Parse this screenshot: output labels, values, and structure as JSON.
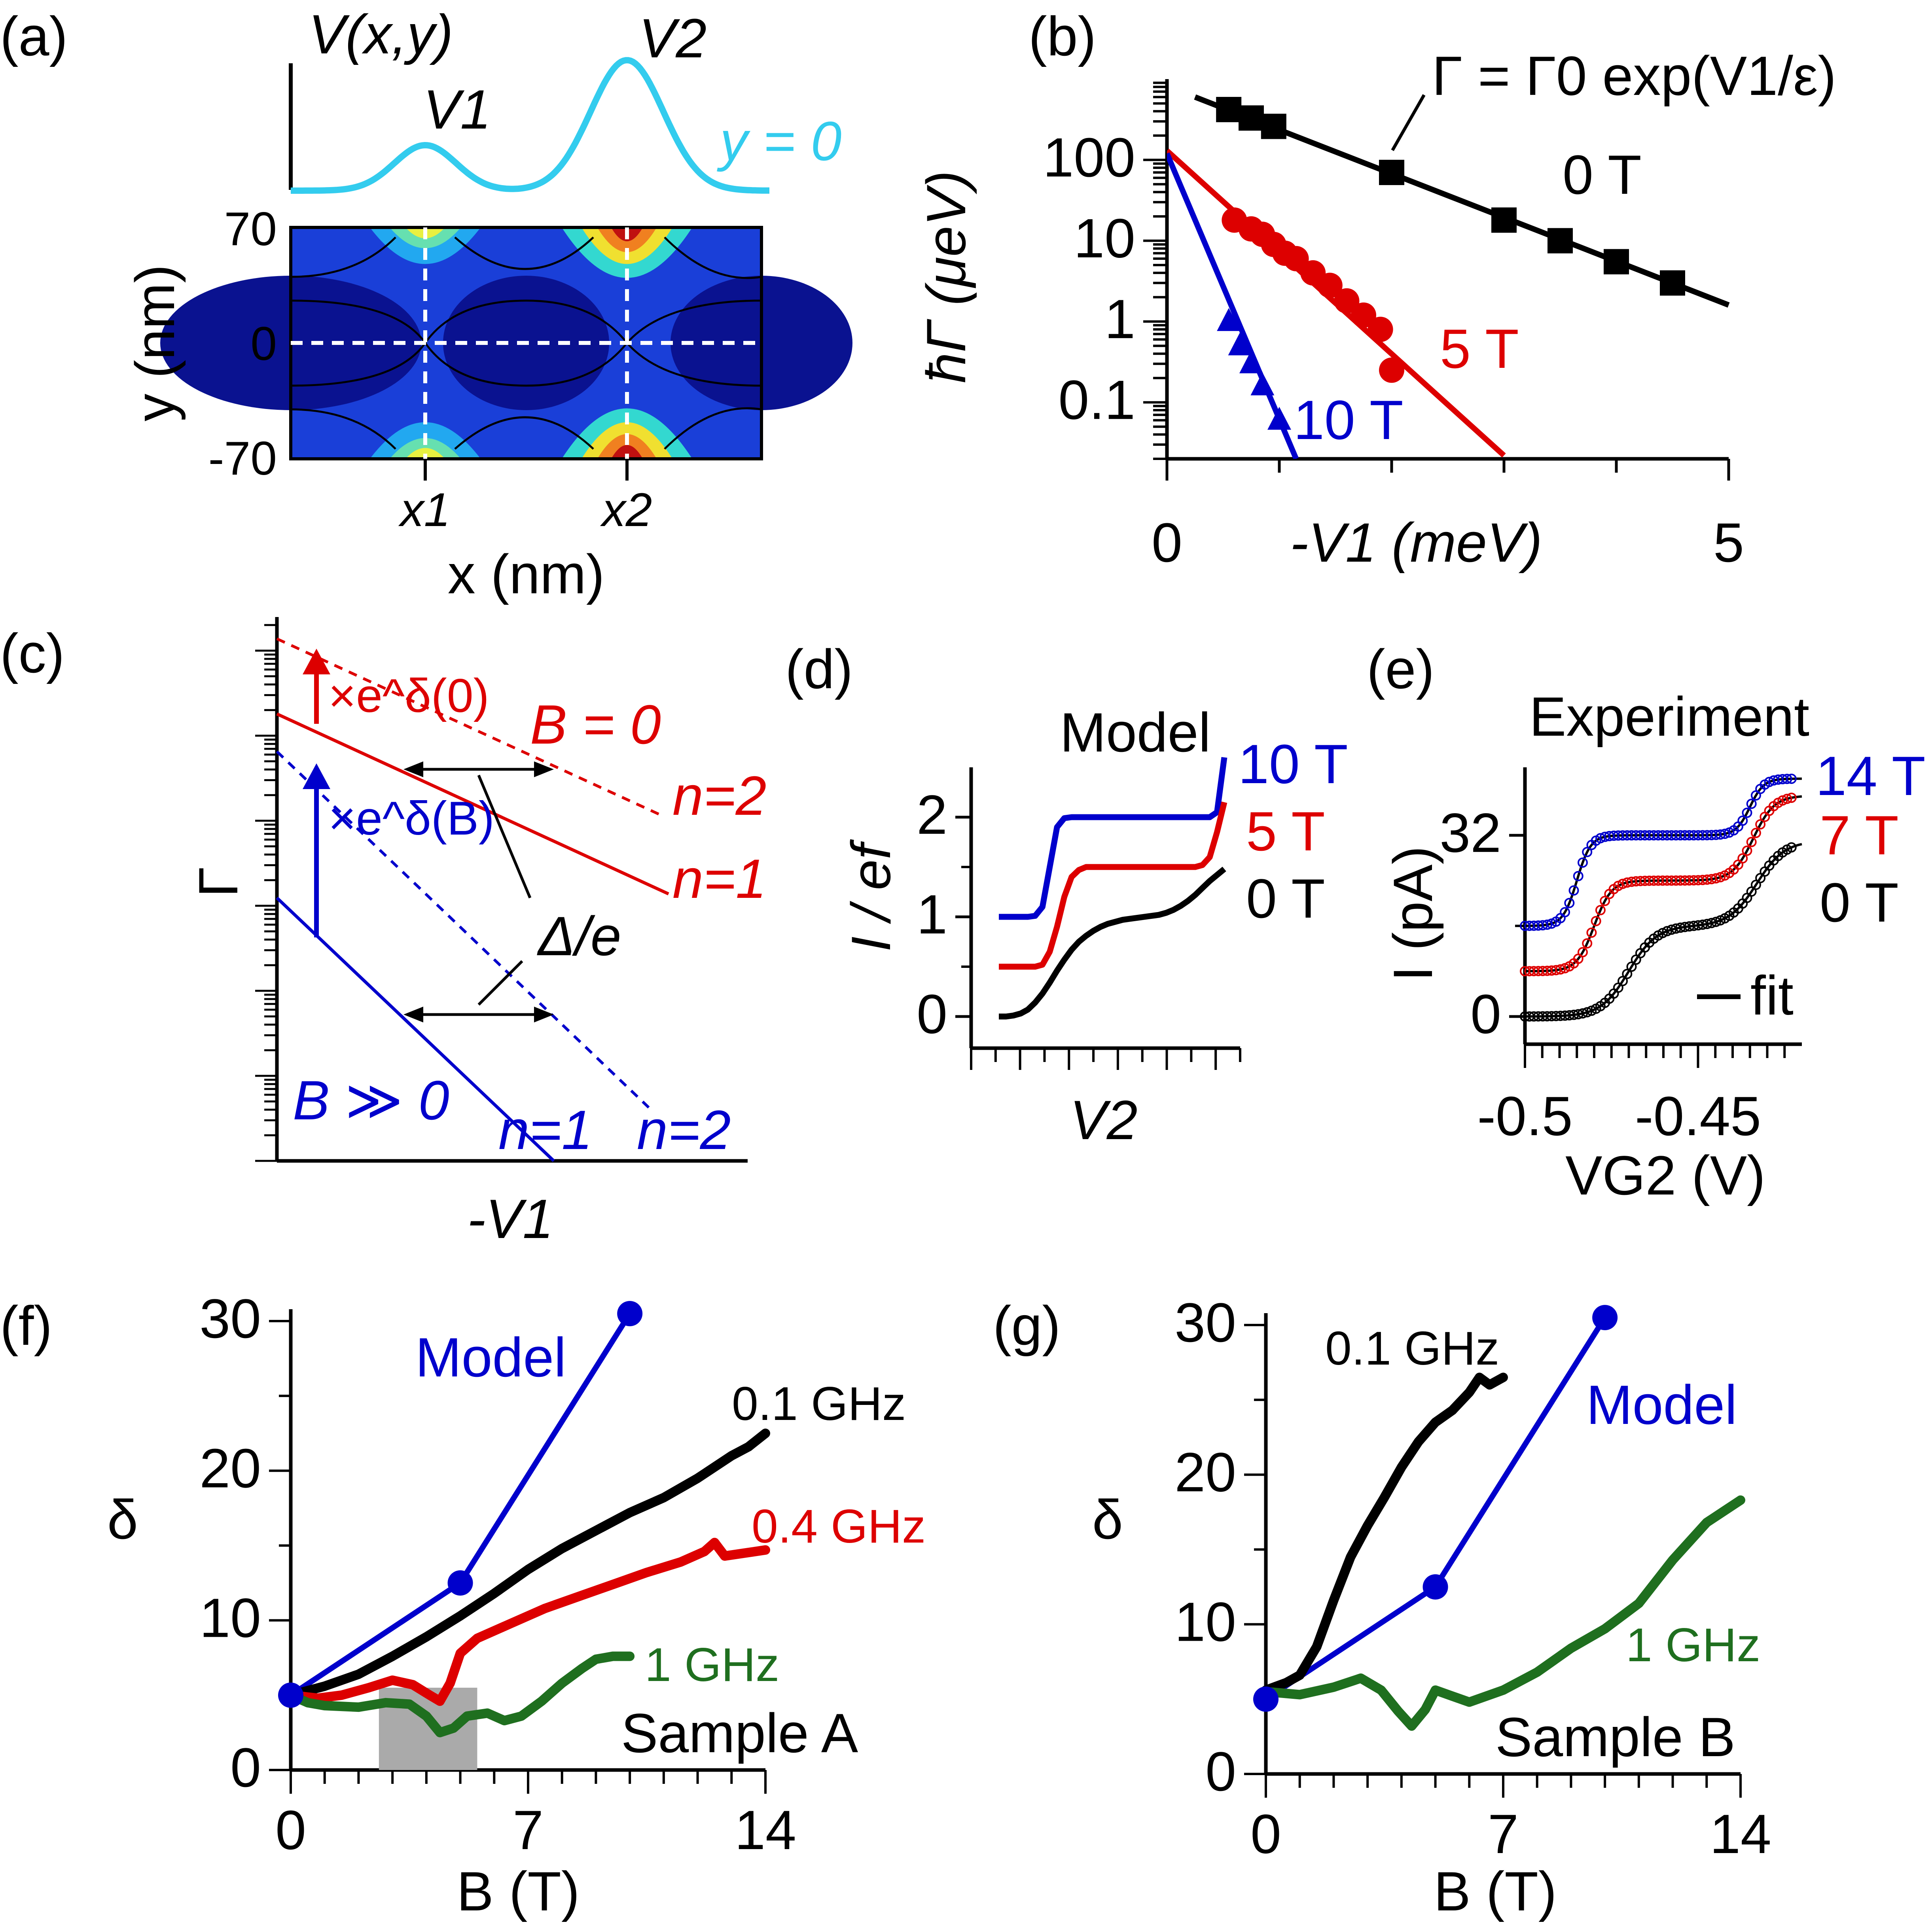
{
  "colors": {
    "black": "#000000",
    "red": "#dd0000",
    "blue": "#0000cc",
    "green": "#1f6f1f",
    "cyan": "#33ccee",
    "gray": "#aaaaaa"
  },
  "panels": {
    "a": {
      "label": "(a)",
      "profile_label": "V(x,y)",
      "v1_label": "V1",
      "v2_label": "V2",
      "y0_label": "y = 0",
      "ylabel": "y (nm)",
      "xlabel": "x (nm)",
      "yticks": [
        "70",
        "0",
        "-70"
      ],
      "xticks": [
        "x1",
        "x2"
      ]
    },
    "b": {
      "label": "(b)",
      "ylabel": "ħΓ (μeV)",
      "xlabel": "-V1 (meV)",
      "yticks": [
        "100",
        "10",
        "1",
        "0.1"
      ],
      "xticks": [
        "0",
        "5"
      ],
      "formula": "Γ = Γ0 exp(V1/ε)",
      "series_labels": [
        "0 T",
        "5 T",
        "10 T"
      ]
    },
    "c": {
      "label": "(c)",
      "ylabel": "Γ",
      "xlabel": "-V1",
      "red_factor": "×e^δ(0)",
      "blue_factor": "×e^δ(B)",
      "b0_label": "B = 0",
      "bbig_label": "B ≫ 0",
      "delta_label": "Δ/e",
      "red_n2": "n=2",
      "red_n1": "n=1",
      "blue_n1": "n=1",
      "blue_n2": "n=2"
    },
    "d": {
      "label": "(d)",
      "title": "Model",
      "ylabel": "I / ef",
      "xlabel": "V2",
      "yticks": [
        "2",
        "1",
        "0"
      ],
      "series_labels": [
        "10 T",
        "5 T",
        "0 T"
      ]
    },
    "e": {
      "label": "(e)",
      "title": "Experiment",
      "ylabel": "I (pA)",
      "xlabel": "VG2 (V)",
      "yticks": [
        "32",
        "0"
      ],
      "xticks": [
        "-0.5",
        "-0.45"
      ],
      "series_labels": [
        "14 T",
        "7 T",
        "0 T"
      ],
      "fit_label": "fit"
    },
    "f": {
      "label": "(f)",
      "ylabel": "δ",
      "xlabel": "B (T)",
      "yticks": [
        "30",
        "20",
        "10",
        "0"
      ],
      "xticks": [
        "0",
        "7",
        "14"
      ],
      "labels": {
        "model": "Model",
        "f01": "0.1 GHz",
        "f04": "0.4 GHz",
        "f1": "1 GHz",
        "sample": "Sample A"
      }
    },
    "g": {
      "label": "(g)",
      "ylabel": "δ",
      "xlabel": "B (T)",
      "yticks": [
        "30",
        "20",
        "10",
        "0"
      ],
      "xticks": [
        "0",
        "7",
        "14"
      ],
      "labels": {
        "model": "Model",
        "f01": "0.1 GHz",
        "f1": "1 GHz",
        "sample": "Sample B"
      }
    }
  },
  "chart_data": [
    {
      "panel": "b",
      "type": "line",
      "y_scale": "log",
      "xlim": [
        0,
        5
      ],
      "ylim": [
        0.02,
        1000
      ],
      "series": [
        {
          "name": "0 T",
          "color": "#000000",
          "line": [
            [
              0.25,
              600
            ],
            [
              5,
              1.6
            ]
          ],
          "points": [
            [
              0.55,
              420
            ],
            [
              0.75,
              330
            ],
            [
              0.95,
              260
            ],
            [
              2.0,
              70
            ],
            [
              3.0,
              18
            ],
            [
              3.5,
              10
            ],
            [
              4.0,
              5.5
            ],
            [
              4.5,
              3.0
            ]
          ]
        },
        {
          "name": "5 T",
          "color": "#dd0000",
          "line": [
            [
              0,
              130
            ],
            [
              3.0,
              0.022
            ]
          ],
          "points": [
            [
              0.6,
              18
            ],
            [
              0.75,
              14
            ],
            [
              0.85,
              12
            ],
            [
              0.95,
              9
            ],
            [
              1.05,
              7
            ],
            [
              1.15,
              6
            ],
            [
              1.3,
              4
            ],
            [
              1.45,
              2.8
            ],
            [
              1.6,
              1.8
            ],
            [
              1.75,
              1.2
            ],
            [
              1.9,
              0.8
            ],
            [
              2.0,
              0.25
            ]
          ]
        },
        {
          "name": "10 T",
          "color": "#0000cc",
          "line": [
            [
              0,
              120
            ],
            [
              1.15,
              0.02
            ]
          ],
          "points": [
            [
              0.55,
              1.0
            ],
            [
              0.65,
              0.5
            ],
            [
              0.75,
              0.3
            ],
            [
              0.85,
              0.16
            ],
            [
              1.0,
              0.06
            ]
          ]
        }
      ]
    },
    {
      "panel": "d",
      "type": "line",
      "xlim": [
        0,
        1
      ],
      "ylim": [
        0,
        2.5
      ],
      "series": [
        {
          "name": "10 T",
          "color": "#0000cc",
          "y": [
            1.0,
            1.0,
            1.0,
            1.0,
            1.0,
            1.01,
            1.1,
            1.5,
            1.9,
            1.99,
            2.0,
            2.0,
            2.0,
            2.0,
            2.0,
            2.0,
            2.0,
            2.0,
            2.0,
            2.0,
            2.0,
            2.0,
            2.0,
            2.0,
            2.0,
            2.0,
            2.0,
            2.0,
            2.0,
            2.0,
            2.05,
            2.6
          ]
        },
        {
          "name": "5 T",
          "color": "#dd0000",
          "y": [
            0.5,
            0.5,
            0.5,
            0.5,
            0.5,
            0.5,
            0.52,
            0.65,
            0.9,
            1.2,
            1.4,
            1.47,
            1.5,
            1.5,
            1.5,
            1.5,
            1.5,
            1.5,
            1.5,
            1.5,
            1.5,
            1.5,
            1.5,
            1.5,
            1.5,
            1.5,
            1.5,
            1.5,
            1.52,
            1.6,
            1.85,
            2.15
          ]
        },
        {
          "name": "0 T",
          "color": "#000000",
          "y": [
            0.0,
            0.0,
            0.01,
            0.03,
            0.07,
            0.14,
            0.23,
            0.34,
            0.46,
            0.57,
            0.67,
            0.75,
            0.81,
            0.86,
            0.9,
            0.93,
            0.95,
            0.97,
            0.98,
            0.99,
            1.0,
            1.01,
            1.02,
            1.04,
            1.07,
            1.11,
            1.16,
            1.22,
            1.29,
            1.36,
            1.42,
            1.48
          ]
        }
      ]
    },
    {
      "panel": "e",
      "type": "scatter",
      "xlim": [
        -0.5,
        -0.42
      ],
      "ylim": [
        0,
        44
      ],
      "series": [
        {
          "name": "14 T",
          "color": "#0000cc",
          "steps": [
            {
              "x0": -0.5,
              "y0": 16,
              "center": -0.485,
              "height": 16,
              "width": 0.002
            },
            {
              "center": -0.435,
              "height": 10,
              "width": 0.002
            }
          ]
        },
        {
          "name": "7 T",
          "color": "#dd0000",
          "steps": [
            {
              "x0": -0.5,
              "y0": 8,
              "center": -0.48,
              "height": 16,
              "width": 0.0025
            },
            {
              "center": -0.434,
              "height": 15,
              "width": 0.003
            }
          ]
        },
        {
          "name": "0 T",
          "color": "#000000",
          "steps": [
            {
              "x0": -0.5,
              "y0": 0,
              "center": -0.47,
              "height": 16,
              "width": 0.004
            },
            {
              "center": -0.433,
              "height": 15,
              "width": 0.004
            }
          ]
        }
      ]
    },
    {
      "panel": "f",
      "type": "line",
      "xlim": [
        0,
        14
      ],
      "ylim": [
        0,
        30
      ],
      "shaded": [
        2.6,
        5.5
      ],
      "series": [
        {
          "name": "Model",
          "color": "#0000cc",
          "points": [
            [
              0,
              5
            ],
            [
              5,
              12.5
            ],
            [
              10,
              30.5
            ]
          ],
          "markers": true
        },
        {
          "name": "0.1 GHz",
          "color": "#000000",
          "points": [
            [
              0,
              5
            ],
            [
              1,
              5.6
            ],
            [
              2,
              6.4
            ],
            [
              3,
              7.6
            ],
            [
              4,
              8.9
            ],
            [
              5,
              10.3
            ],
            [
              6,
              11.8
            ],
            [
              7,
              13.4
            ],
            [
              8,
              14.8
            ],
            [
              9,
              16
            ],
            [
              10,
              17.2
            ],
            [
              11,
              18.2
            ],
            [
              12,
              19.5
            ],
            [
              13,
              21
            ],
            [
              13.5,
              21.6
            ],
            [
              14,
              22.5
            ]
          ]
        },
        {
          "name": "0.4 GHz",
          "color": "#dd0000",
          "points": [
            [
              0,
              5
            ],
            [
              0.8,
              4.8
            ],
            [
              1.5,
              5
            ],
            [
              2.3,
              5.5
            ],
            [
              3,
              6
            ],
            [
              3.6,
              5.7
            ],
            [
              4.1,
              5
            ],
            [
              4.4,
              4.6
            ],
            [
              4.7,
              5.8
            ],
            [
              5,
              7.8
            ],
            [
              5.5,
              8.8
            ],
            [
              6.5,
              9.8
            ],
            [
              7.5,
              10.8
            ],
            [
              8.5,
              11.6
            ],
            [
              9.5,
              12.4
            ],
            [
              10.5,
              13.2
            ],
            [
              11.5,
              13.9
            ],
            [
              12.2,
              14.6
            ],
            [
              12.5,
              15.2
            ],
            [
              12.8,
              14.3
            ],
            [
              13.4,
              14.5
            ],
            [
              14,
              14.7
            ]
          ]
        },
        {
          "name": "1 GHz",
          "color": "#1f6f1f",
          "points": [
            [
              0,
              5
            ],
            [
              0.5,
              4.5
            ],
            [
              1,
              4.3
            ],
            [
              2,
              4.2
            ],
            [
              2.8,
              4.5
            ],
            [
              3.5,
              4.4
            ],
            [
              4,
              3.6
            ],
            [
              4.4,
              2.5
            ],
            [
              4.8,
              2.8
            ],
            [
              5.2,
              3.6
            ],
            [
              5.8,
              3.8
            ],
            [
              6.3,
              3.3
            ],
            [
              6.8,
              3.6
            ],
            [
              7.4,
              4.6
            ],
            [
              8,
              5.8
            ],
            [
              8.6,
              6.8
            ],
            [
              9,
              7.4
            ],
            [
              9.5,
              7.6
            ],
            [
              10,
              7.6
            ]
          ]
        }
      ]
    },
    {
      "panel": "g",
      "type": "line",
      "xlim": [
        0,
        14
      ],
      "ylim": [
        0,
        30
      ],
      "series": [
        {
          "name": "Model",
          "color": "#0000cc",
          "points": [
            [
              0,
              5
            ],
            [
              5,
              12.5
            ],
            [
              10,
              30.5
            ]
          ],
          "markers": true
        },
        {
          "name": "0.1 GHz",
          "color": "#000000",
          "points": [
            [
              0,
              5.6
            ],
            [
              0.6,
              6.1
            ],
            [
              1,
              6.6
            ],
            [
              1.5,
              8.5
            ],
            [
              2,
              11.6
            ],
            [
              2.5,
              14.5
            ],
            [
              3,
              16.6
            ],
            [
              3.5,
              18.5
            ],
            [
              4,
              20.5
            ],
            [
              4.5,
              22.2
            ],
            [
              5,
              23.5
            ],
            [
              5.5,
              24.3
            ],
            [
              6,
              25.5
            ],
            [
              6.3,
              26.5
            ],
            [
              6.6,
              26.0
            ],
            [
              7,
              26.5
            ]
          ]
        },
        {
          "name": "1 GHz",
          "color": "#1f6f1f",
          "points": [
            [
              0,
              5.5
            ],
            [
              1,
              5.3
            ],
            [
              2,
              5.8
            ],
            [
              2.8,
              6.4
            ],
            [
              3.4,
              5.6
            ],
            [
              3.9,
              4.2
            ],
            [
              4.3,
              3.2
            ],
            [
              4.7,
              4.3
            ],
            [
              5,
              5.6
            ],
            [
              5.5,
              5.2
            ],
            [
              6,
              4.8
            ],
            [
              7,
              5.6
            ],
            [
              8,
              6.8
            ],
            [
              9,
              8.4
            ],
            [
              10,
              9.7
            ],
            [
              11,
              11.4
            ],
            [
              12,
              14.3
            ],
            [
              13,
              16.8
            ],
            [
              14,
              18.3
            ]
          ]
        }
      ]
    }
  ]
}
